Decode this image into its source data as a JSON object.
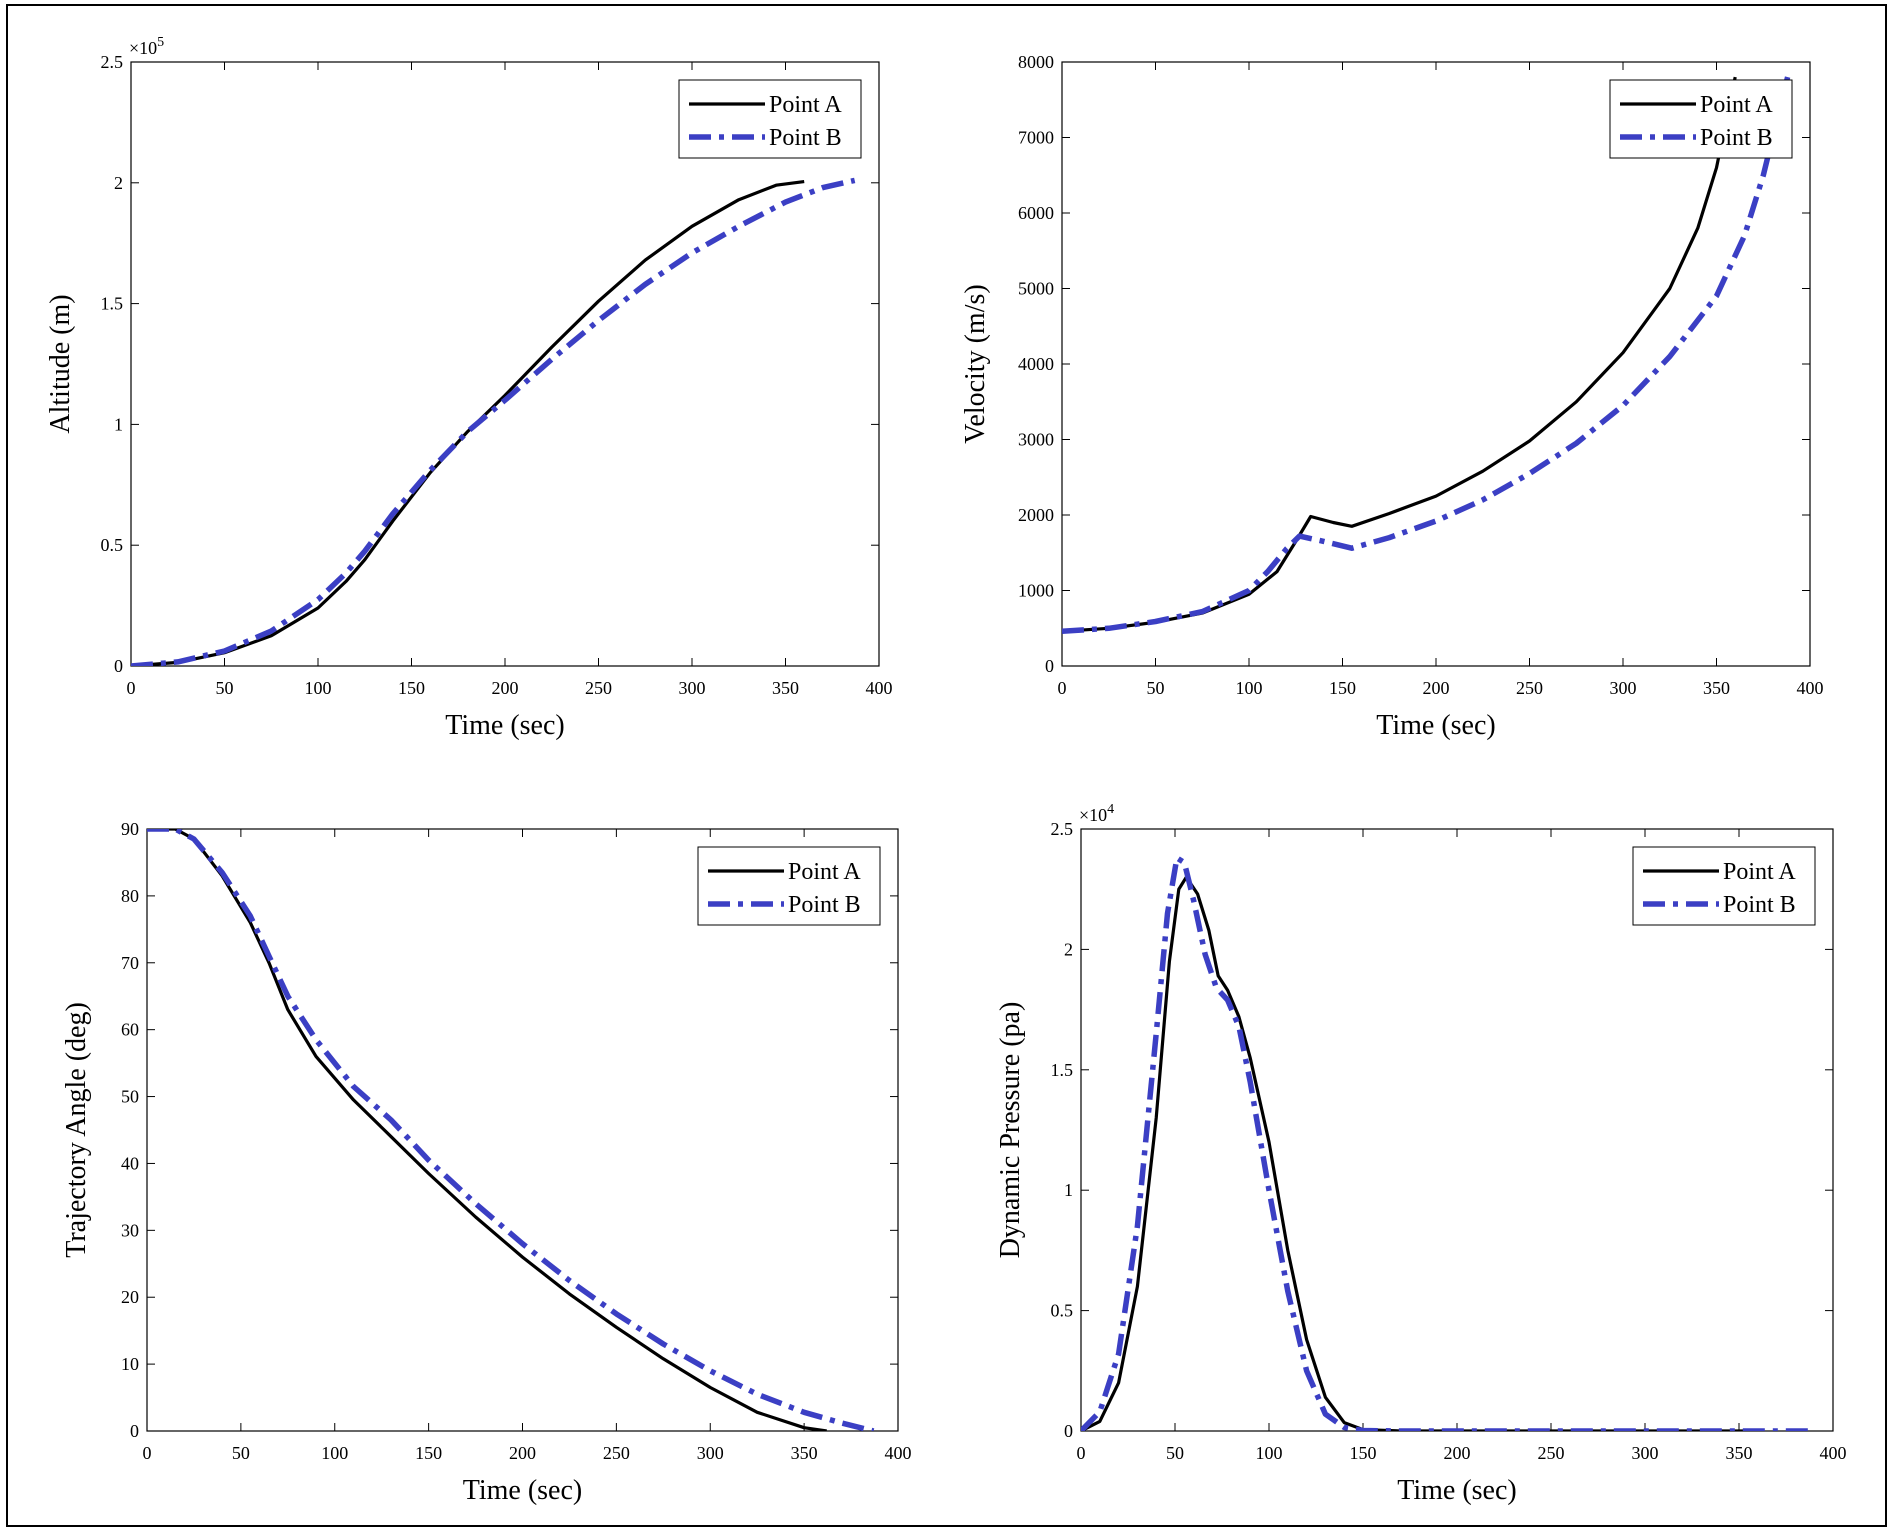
{
  "chart_data": [
    {
      "type": "line",
      "xlabel": "Time (sec)",
      "ylabel": "Altitude (m)",
      "xlim": [
        0,
        400
      ],
      "ylim": [
        0,
        250000
      ],
      "x_ticks": [
        0,
        50,
        100,
        150,
        200,
        250,
        300,
        350,
        400
      ],
      "y_ticks": [
        0,
        50000,
        100000,
        150000,
        200000,
        250000
      ],
      "y_tick_labels": [
        "0",
        "0.5",
        "1",
        "1.5",
        "2",
        "2.5"
      ],
      "y_multiplier": "×10",
      "y_multiplier_exp": "5",
      "grid": false,
      "legend_position": "top-right",
      "series": [
        {
          "name": "Point A",
          "color": "#000000",
          "style": "solid",
          "points": [
            [
              0,
              0
            ],
            [
              25,
              1500
            ],
            [
              50,
              5500
            ],
            [
              75,
              12500
            ],
            [
              100,
              24000
            ],
            [
              115,
              35000
            ],
            [
              125,
              44000
            ],
            [
              140,
              60000
            ],
            [
              160,
              80000
            ],
            [
              180,
              97000
            ],
            [
              200,
              112000
            ],
            [
              225,
              132000
            ],
            [
              250,
              151000
            ],
            [
              275,
              168000
            ],
            [
              300,
              182000
            ],
            [
              325,
              193000
            ],
            [
              345,
              199000
            ],
            [
              360,
              200500
            ]
          ]
        },
        {
          "name": "Point B",
          "color": "#3b3fc4",
          "style": "dashdot",
          "points": [
            [
              0,
              0
            ],
            [
              25,
              1700
            ],
            [
              50,
              6200
            ],
            [
              75,
              14500
            ],
            [
              100,
              27500
            ],
            [
              115,
              38500
            ],
            [
              125,
              47500
            ],
            [
              140,
              63000
            ],
            [
              160,
              81000
            ],
            [
              180,
              97000
            ],
            [
              200,
              110000
            ],
            [
              225,
              127000
            ],
            [
              250,
              143000
            ],
            [
              275,
              158000
            ],
            [
              300,
              171000
            ],
            [
              325,
              182000
            ],
            [
              350,
              192000
            ],
            [
              370,
              198000
            ],
            [
              387,
              201000
            ]
          ]
        }
      ]
    },
    {
      "type": "line",
      "xlabel": "Time (sec)",
      "ylabel": "Velocity (m/s)",
      "xlim": [
        0,
        400
      ],
      "ylim": [
        0,
        8000
      ],
      "x_ticks": [
        0,
        50,
        100,
        150,
        200,
        250,
        300,
        350,
        400
      ],
      "y_ticks": [
        0,
        1000,
        2000,
        3000,
        4000,
        5000,
        6000,
        7000,
        8000
      ],
      "y_tick_labels": [
        "0",
        "1000",
        "2000",
        "3000",
        "4000",
        "5000",
        "6000",
        "7000",
        "8000"
      ],
      "grid": false,
      "legend_position": "top-right",
      "series": [
        {
          "name": "Point A",
          "color": "#000000",
          "style": "solid",
          "points": [
            [
              0,
              460
            ],
            [
              25,
              500
            ],
            [
              50,
              580
            ],
            [
              75,
              700
            ],
            [
              100,
              950
            ],
            [
              115,
              1250
            ],
            [
              125,
              1650
            ],
            [
              133,
              1980
            ],
            [
              145,
              1900
            ],
            [
              155,
              1850
            ],
            [
              175,
              2020
            ],
            [
              200,
              2250
            ],
            [
              225,
              2580
            ],
            [
              250,
              2980
            ],
            [
              275,
              3500
            ],
            [
              300,
              4150
            ],
            [
              325,
              5000
            ],
            [
              340,
              5800
            ],
            [
              350,
              6600
            ],
            [
              360,
              7800
            ]
          ]
        },
        {
          "name": "Point B",
          "color": "#3b3fc4",
          "style": "dashdot",
          "points": [
            [
              0,
              460
            ],
            [
              25,
              500
            ],
            [
              50,
              590
            ],
            [
              75,
              720
            ],
            [
              100,
              1000
            ],
            [
              110,
              1250
            ],
            [
              120,
              1550
            ],
            [
              127,
              1720
            ],
            [
              140,
              1650
            ],
            [
              155,
              1560
            ],
            [
              175,
              1700
            ],
            [
              200,
              1920
            ],
            [
              225,
              2200
            ],
            [
              250,
              2550
            ],
            [
              275,
              2950
            ],
            [
              300,
              3450
            ],
            [
              325,
              4100
            ],
            [
              350,
              4900
            ],
            [
              365,
              5700
            ],
            [
              375,
              6500
            ],
            [
              382,
              7200
            ],
            [
              388,
              7800
            ]
          ]
        }
      ]
    },
    {
      "type": "line",
      "xlabel": "Time (sec)",
      "ylabel": "Trajectory Angle (deg)",
      "xlim": [
        0,
        400
      ],
      "ylim": [
        0,
        90
      ],
      "x_ticks": [
        0,
        50,
        100,
        150,
        200,
        250,
        300,
        350,
        400
      ],
      "y_ticks": [
        0,
        10,
        20,
        30,
        40,
        50,
        60,
        70,
        80,
        90
      ],
      "y_tick_labels": [
        "0",
        "10",
        "20",
        "30",
        "40",
        "50",
        "60",
        "70",
        "80",
        "90"
      ],
      "grid": false,
      "legend_position": "top-right",
      "series": [
        {
          "name": "Point A",
          "color": "#000000",
          "style": "solid",
          "points": [
            [
              0,
              90
            ],
            [
              15,
              90
            ],
            [
              25,
              88.5
            ],
            [
              40,
              83
            ],
            [
              55,
              76
            ],
            [
              65,
              70
            ],
            [
              75,
              63
            ],
            [
              90,
              56
            ],
            [
              110,
              49.5
            ],
            [
              130,
              44
            ],
            [
              150,
              38.5
            ],
            [
              175,
              32
            ],
            [
              200,
              26
            ],
            [
              225,
              20.5
            ],
            [
              250,
              15.5
            ],
            [
              275,
              10.8
            ],
            [
              300,
              6.5
            ],
            [
              325,
              2.8
            ],
            [
              350,
              0.5
            ],
            [
              362,
              0
            ]
          ]
        },
        {
          "name": "Point B",
          "color": "#3b3fc4",
          "style": "dashdot",
          "points": [
            [
              0,
              90
            ],
            [
              15,
              90
            ],
            [
              25,
              88.5
            ],
            [
              40,
              83.5
            ],
            [
              55,
              77
            ],
            [
              65,
              71
            ],
            [
              75,
              65
            ],
            [
              90,
              58.5
            ],
            [
              110,
              51.5
            ],
            [
              130,
              46.5
            ],
            [
              150,
              40.5
            ],
            [
              175,
              34
            ],
            [
              200,
              28
            ],
            [
              225,
              22.5
            ],
            [
              250,
              17.5
            ],
            [
              275,
              13
            ],
            [
              300,
              9
            ],
            [
              325,
              5.5
            ],
            [
              350,
              2.8
            ],
            [
              370,
              1.2
            ],
            [
              387,
              0
            ]
          ]
        }
      ]
    },
    {
      "type": "line",
      "xlabel": "Time (sec)",
      "ylabel": "Dynamic Pressure (pa)",
      "xlim": [
        0,
        400
      ],
      "ylim": [
        0,
        25000
      ],
      "x_ticks": [
        0,
        50,
        100,
        150,
        200,
        250,
        300,
        350,
        400
      ],
      "y_ticks": [
        0,
        5000,
        10000,
        15000,
        20000,
        25000
      ],
      "y_tick_labels": [
        "0",
        "0.5",
        "1",
        "1.5",
        "2",
        "2.5"
      ],
      "y_multiplier": "×10",
      "y_multiplier_exp": "4",
      "grid": false,
      "legend_position": "top-right",
      "series": [
        {
          "name": "Point A",
          "color": "#000000",
          "style": "solid",
          "points": [
            [
              0,
              0
            ],
            [
              10,
              400
            ],
            [
              20,
              2000
            ],
            [
              30,
              6000
            ],
            [
              40,
              13000
            ],
            [
              47,
              19500
            ],
            [
              52,
              22500
            ],
            [
              56,
              23000
            ],
            [
              62,
              22300
            ],
            [
              68,
              20800
            ],
            [
              73,
              18900
            ],
            [
              78,
              18300
            ],
            [
              84,
              17200
            ],
            [
              90,
              15500
            ],
            [
              100,
              12000
            ],
            [
              110,
              7500
            ],
            [
              120,
              3800
            ],
            [
              130,
              1400
            ],
            [
              140,
              350
            ],
            [
              150,
              60
            ],
            [
              170,
              0
            ],
            [
              250,
              0
            ],
            [
              360,
              0
            ]
          ]
        },
        {
          "name": "Point B",
          "color": "#3b3fc4",
          "style": "dashdot",
          "points": [
            [
              0,
              0
            ],
            [
              10,
              800
            ],
            [
              20,
              3200
            ],
            [
              30,
              8500
            ],
            [
              40,
              16500
            ],
            [
              46,
              21500
            ],
            [
              51,
              23800
            ],
            [
              55,
              23600
            ],
            [
              60,
              22000
            ],
            [
              66,
              19800
            ],
            [
              72,
              18400
            ],
            [
              78,
              17900
            ],
            [
              84,
              16800
            ],
            [
              90,
              14500
            ],
            [
              100,
              10000
            ],
            [
              110,
              5800
            ],
            [
              120,
              2500
            ],
            [
              130,
              700
            ],
            [
              140,
              150
            ],
            [
              150,
              20
            ],
            [
              170,
              0
            ],
            [
              250,
              0
            ],
            [
              387,
              0
            ]
          ]
        }
      ]
    }
  ]
}
